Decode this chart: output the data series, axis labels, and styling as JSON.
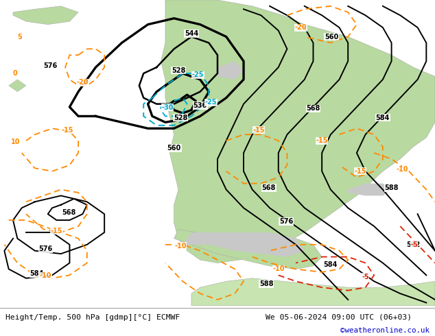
{
  "title_left": "Height/Temp. 500 hPa [gdmp][°C] ECMWF",
  "title_right": "We 05-06-2024 09:00 UTC (06+03)",
  "credit": "©weatheronline.co.uk",
  "sea_color": "#c8c8c8",
  "land_green": "#b8d9a0",
  "land_green2": "#c8e4b0",
  "gray_land": "#d0d0d0",
  "footer_text_color": "#000000",
  "credit_color": "#0000cc",
  "figwidth": 6.34,
  "figheight": 4.9,
  "dpi": 100
}
